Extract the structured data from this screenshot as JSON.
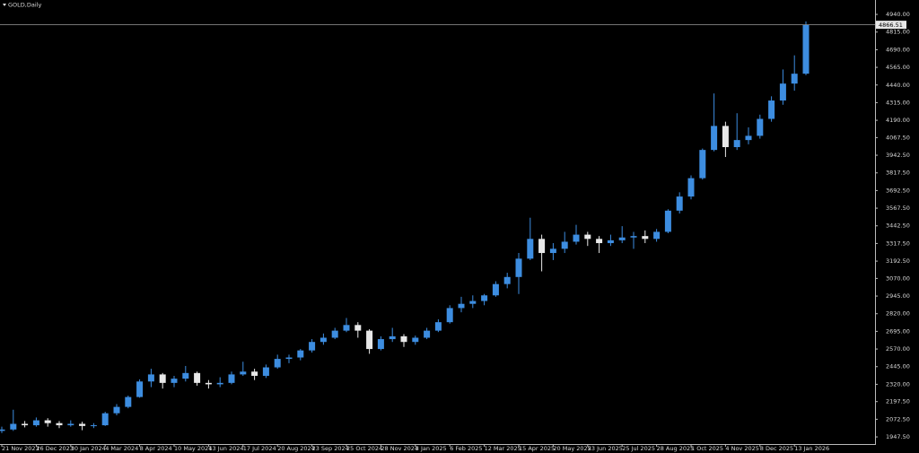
{
  "chart_data": {
    "type": "candlestick",
    "title": "GOLD,Daily",
    "categories": [
      "21 Nov 2023",
      null,
      null,
      "26 Dec 2023",
      null,
      null,
      "30 Jan 2024",
      null,
      null,
      "4 Mar 2024",
      null,
      null,
      "8 Apr 2024",
      null,
      null,
      "10 May 2024",
      null,
      null,
      "13 Jun 2024",
      null,
      null,
      "17 Jul 2024",
      null,
      null,
      "20 Aug 2024",
      null,
      null,
      "23 Sep 2024",
      null,
      null,
      "25 Oct 2024",
      null,
      null,
      "28 Nov 2024",
      null,
      null,
      "3 Jan 2025",
      null,
      null,
      "6 Feb 2025",
      null,
      null,
      "12 Mar 2025",
      null,
      null,
      "15 Apr 2025",
      null,
      null,
      "20 May 2025",
      null,
      null,
      "23 Jun 2025",
      null,
      null,
      "25 Jul 2025",
      null,
      null,
      "28 Aug 2025",
      null,
      null,
      "1 Oct 2025",
      null,
      null,
      "4 Nov 2025",
      null,
      null,
      "8 Dec 2025",
      null,
      null,
      "13 Jan 2026",
      null
    ],
    "open": [
      1990,
      2000,
      2040,
      2030,
      2065,
      2045,
      2030,
      2040,
      2025,
      2030,
      2115,
      2160,
      2230,
      2340,
      2390,
      2330,
      2360,
      2400,
      2330,
      2320,
      2330,
      2390,
      2410,
      2380,
      2440,
      2500,
      2510,
      2560,
      2620,
      2650,
      2700,
      2740,
      2700,
      2570,
      2640,
      2660,
      2620,
      2650,
      2700,
      2760,
      2860,
      2890,
      2910,
      2950,
      3030,
      3080,
      3210,
      3350,
      3250,
      3280,
      3330,
      3380,
      3350,
      3320,
      3340,
      3360,
      3370,
      3350,
      3400,
      3550,
      3650,
      3780,
      3980,
      4150,
      4000,
      4050,
      4080,
      4200,
      4330,
      4450,
      4520
    ],
    "high": [
      2020,
      2140,
      2060,
      2085,
      2080,
      2060,
      2065,
      2055,
      2045,
      2125,
      2180,
      2240,
      2355,
      2430,
      2400,
      2380,
      2450,
      2410,
      2350,
      2370,
      2410,
      2480,
      2430,
      2460,
      2530,
      2530,
      2570,
      2640,
      2680,
      2720,
      2790,
      2760,
      2710,
      2660,
      2720,
      2675,
      2665,
      2720,
      2780,
      2880,
      2940,
      2950,
      2960,
      3050,
      3110,
      3250,
      3500,
      3380,
      3320,
      3400,
      3450,
      3400,
      3370,
      3380,
      3440,
      3400,
      3410,
      3420,
      3560,
      3680,
      3800,
      3990,
      4380,
      4180,
      4240,
      4140,
      4230,
      4360,
      4550,
      4650,
      4890
    ],
    "low": [
      1975,
      1990,
      2015,
      2020,
      2020,
      2010,
      2020,
      1995,
      2010,
      2025,
      2100,
      2150,
      2225,
      2300,
      2290,
      2300,
      2340,
      2310,
      2290,
      2300,
      2320,
      2380,
      2350,
      2365,
      2430,
      2470,
      2490,
      2545,
      2600,
      2640,
      2690,
      2650,
      2536,
      2560,
      2620,
      2585,
      2600,
      2640,
      2690,
      2750,
      2830,
      2860,
      2880,
      2940,
      3000,
      2960,
      3200,
      3120,
      3200,
      3250,
      3310,
      3300,
      3250,
      3300,
      3320,
      3280,
      3320,
      3330,
      3390,
      3530,
      3630,
      3770,
      3970,
      3930,
      3980,
      4020,
      4060,
      4180,
      4300,
      4400,
      4510
    ],
    "close": [
      2000,
      2040,
      2030,
      2065,
      2045,
      2030,
      2040,
      2025,
      2030,
      2115,
      2160,
      2230,
      2340,
      2390,
      2330,
      2360,
      2400,
      2330,
      2320,
      2330,
      2390,
      2410,
      2380,
      2440,
      2500,
      2510,
      2560,
      2620,
      2650,
      2700,
      2740,
      2700,
      2570,
      2640,
      2660,
      2620,
      2650,
      2700,
      2760,
      2860,
      2890,
      2910,
      2950,
      3030,
      3080,
      3210,
      3350,
      3250,
      3280,
      3330,
      3380,
      3350,
      3320,
      3340,
      3360,
      3370,
      3350,
      3400,
      3550,
      3650,
      3780,
      3980,
      4150,
      4000,
      4050,
      4080,
      4200,
      4330,
      4450,
      4520,
      4866.51
    ],
    "up_color": "#3d8de0",
    "down_color": "#e8e8e8",
    "current_price": 4866.51,
    "ylim": [
      1897,
      5042
    ],
    "yticks": [
      {
        "value": 4940,
        "label": "4940.00"
      },
      {
        "value": 4815,
        "label": "4815.00"
      },
      {
        "value": 4690,
        "label": "4690.00"
      },
      {
        "value": 4565,
        "label": "4565.00"
      },
      {
        "value": 4440,
        "label": "4440.00"
      },
      {
        "value": 4315,
        "label": "4315.00"
      },
      {
        "value": 4190,
        "label": "4190.00"
      },
      {
        "value": 4067.5,
        "label": "4067.50"
      },
      {
        "value": 3942.5,
        "label": "3942.50"
      },
      {
        "value": 3817.5,
        "label": "3817.50"
      },
      {
        "value": 3692.5,
        "label": "3692.50"
      },
      {
        "value": 3567.5,
        "label": "3567.50"
      },
      {
        "value": 3442.5,
        "label": "3442.50"
      },
      {
        "value": 3317.5,
        "label": "3317.50"
      },
      {
        "value": 3192.5,
        "label": "3192.50"
      },
      {
        "value": 3070,
        "label": "3070.00"
      },
      {
        "value": 2945,
        "label": "2945.00"
      },
      {
        "value": 2820,
        "label": "2820.00"
      },
      {
        "value": 2695,
        "label": "2695.00"
      },
      {
        "value": 2570,
        "label": "2570.00"
      },
      {
        "value": 2445,
        "label": "2445.00"
      },
      {
        "value": 2320,
        "label": "2320.00"
      },
      {
        "value": 2197.5,
        "label": "2197.50"
      },
      {
        "value": 2072.5,
        "label": "2072.50"
      },
      {
        "value": 1947.5,
        "label": "1947.50"
      }
    ],
    "grid": false
  }
}
